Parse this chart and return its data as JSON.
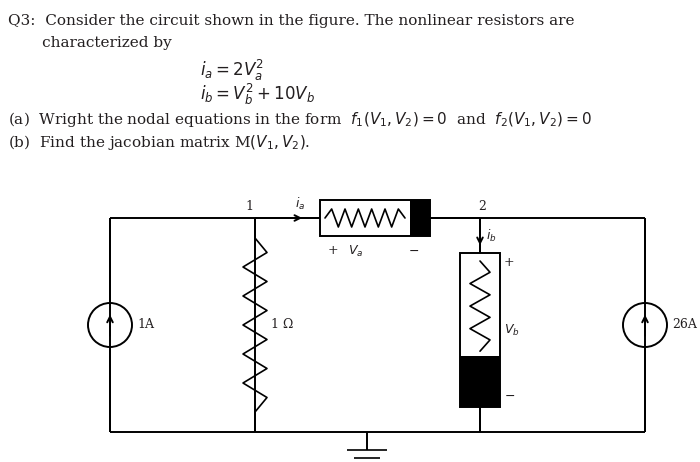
{
  "bg_color": "#ffffff",
  "text_color": "#231f20",
  "line1": "Q3:  Consider the circuit shown in the figure. The nonlinear resistors are",
  "line2": "       characterized by",
  "eq1": "$i_a = 2V_a^2$",
  "eq2": "$i_b = V_b^2 + 10V_b$",
  "part_a": "(a)  Wright the nodal equations in the form  $f_1(V_1,V_2) = 0$  and  $f_2(V_1,V_2) = 0$",
  "part_b": "(b)  Find the jacobian matrix M$(V_1,V_2)$.",
  "label_node1": "1",
  "label_node2": "2",
  "label_ia": "$i_a$",
  "label_ib": "$i_b$",
  "label_Va_plus": "+",
  "label_Va": "$V_a$",
  "label_Va_minus": "$-$",
  "label_Vb_plus": "+",
  "label_Vb": "$V_b$",
  "label_Vb_minus": "$-$",
  "label_1ohm": "1 Ω",
  "label_1A": "1A",
  "label_26A": "26A",
  "fs": 11,
  "fs_circuit": 9
}
